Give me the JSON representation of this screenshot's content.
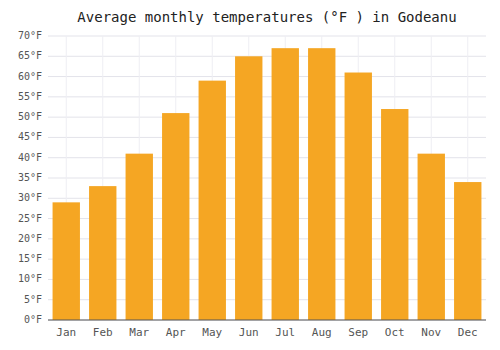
{
  "chart_data": {
    "type": "bar",
    "title": "Average monthly temperatures (°F ) in Godeanu",
    "categories": [
      "Jan",
      "Feb",
      "Mar",
      "Apr",
      "May",
      "Jun",
      "Jul",
      "Aug",
      "Sep",
      "Oct",
      "Nov",
      "Dec"
    ],
    "values": [
      29,
      33,
      41,
      51,
      59,
      65,
      67,
      67,
      61,
      52,
      41,
      34
    ],
    "color": "#F5A623",
    "ylim": [
      0,
      70
    ],
    "yticks": [
      {
        "value": 0,
        "label": "0°F"
      },
      {
        "value": 5,
        "label": "5°F"
      },
      {
        "value": 10,
        "label": "10°F"
      },
      {
        "value": 15,
        "label": "15°F"
      },
      {
        "value": 20,
        "label": "20°F"
      },
      {
        "value": 25,
        "label": "25°F"
      },
      {
        "value": 30,
        "label": "30°F"
      },
      {
        "value": 35,
        "label": "35°F"
      },
      {
        "value": 40,
        "label": "40°F"
      },
      {
        "value": 45,
        "label": "45°F"
      },
      {
        "value": 50,
        "label": "50°F"
      },
      {
        "value": 55,
        "label": "55°F"
      },
      {
        "value": 60,
        "label": "60°F"
      },
      {
        "value": 65,
        "label": "65°F"
      },
      {
        "value": 70,
        "label": "70°F"
      }
    ],
    "grid": true
  }
}
